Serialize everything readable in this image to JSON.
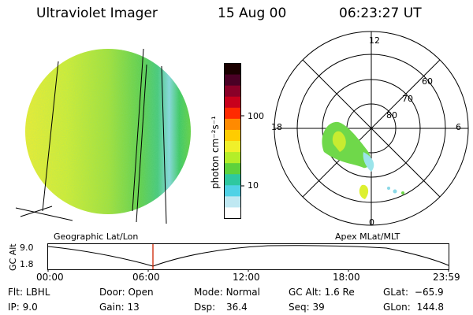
{
  "header": {
    "instrument": "Ultraviolet Imager",
    "date": "15 Aug 00",
    "time": "06:23:27 UT"
  },
  "colorbar": {
    "unit_label": "photon cm⁻²s⁻¹",
    "ticks": [
      "100",
      "10"
    ],
    "colors": [
      "#1a0000",
      "#4a0025",
      "#8a0028",
      "#c8001c",
      "#ff2a00",
      "#ff8a00",
      "#ffcc00",
      "#f0f02a",
      "#b4ee28",
      "#5ed23c",
      "#2ec8a0",
      "#50d2e6",
      "#bfe8f2",
      "#ffffff"
    ]
  },
  "polar_plot": {
    "mlt_labels": {
      "top": "12",
      "left": "18",
      "right": "6",
      "bottom": "0"
    },
    "lat_labels": [
      "60",
      "70",
      "80"
    ]
  },
  "timeline": {
    "left_label": "Geographic Lat/Lon",
    "right_label": "Apex MLat/MLT",
    "axis_title": "GC Alt",
    "y_ticks": [
      "9.0",
      "1.8"
    ],
    "x_ticks": [
      "00:00",
      "06:00",
      "12:00",
      "18:00",
      "23:59"
    ]
  },
  "status": {
    "filter": {
      "label": "Flt:",
      "value": "LBHL"
    },
    "ip": {
      "label": "IP:",
      "value": "9.0"
    },
    "door": {
      "label": "Door:",
      "value": "Open"
    },
    "gain": {
      "label": "Gain:",
      "value": "13"
    },
    "mode": {
      "label": "Mode:",
      "value": "Normal"
    },
    "dsp": {
      "label": "Dsp:",
      "value": "36.4"
    },
    "gc_alt": {
      "label": "GC Alt:",
      "value": "1.6 Re"
    },
    "seq": {
      "label": "Seq:",
      "value": "39"
    },
    "glat": {
      "label": "GLat:",
      "value": "−65.9"
    },
    "glon": {
      "label": "GLon:",
      "value": "144.8"
    }
  }
}
